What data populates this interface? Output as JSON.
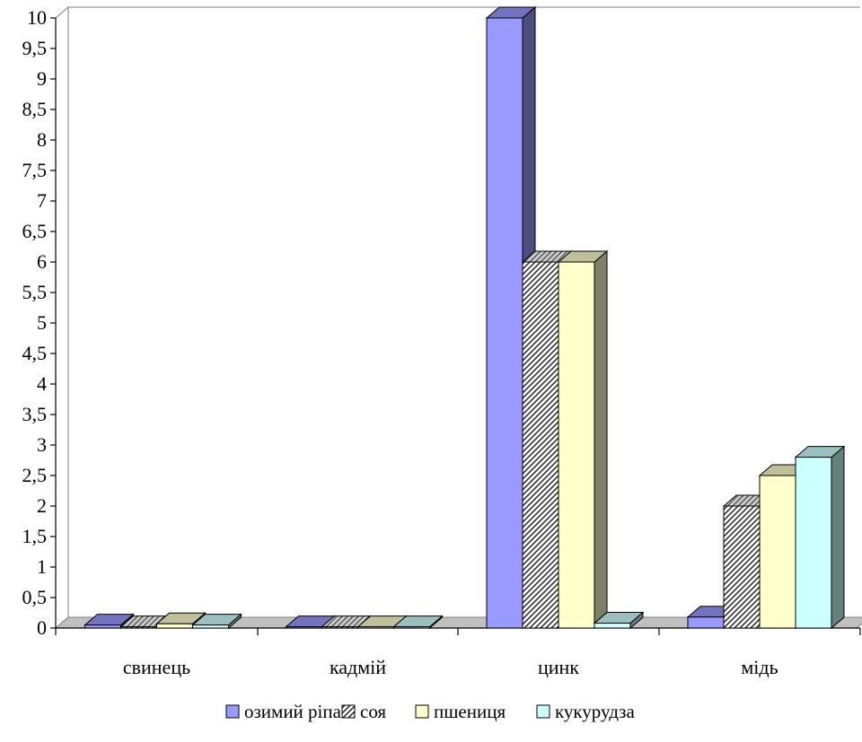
{
  "chart_data": {
    "type": "bar",
    "categories": [
      "свинець",
      "кадмій",
      "цинк",
      "мідь"
    ],
    "series": [
      {
        "name": "озимий ріпак",
        "values": [
          0.05,
          0.02,
          10.0,
          0.18
        ],
        "color": "#9999ff",
        "pattern": "solid"
      },
      {
        "name": "соя",
        "values": [
          0.02,
          0.02,
          6.0,
          2.0
        ],
        "color": "#ffffff",
        "pattern": "diagonal-hatch"
      },
      {
        "name": "пшениця",
        "values": [
          0.07,
          0.02,
          6.0,
          2.5
        ],
        "color": "#ffffcc",
        "pattern": "solid"
      },
      {
        "name": "кукурудза",
        "values": [
          0.05,
          0.02,
          0.08,
          2.8
        ],
        "color": "#ccffff",
        "pattern": "solid"
      }
    ],
    "yticks": [
      "0",
      "0,5",
      "1",
      "1,5",
      "2",
      "2,5",
      "3",
      "3,5",
      "4",
      "4,5",
      "5",
      "5,5",
      "6",
      "6,5",
      "7",
      "7,5",
      "8",
      "8,5",
      "9",
      "9,5",
      "10"
    ],
    "ylim": [
      0,
      10
    ],
    "title": "",
    "xlabel": "",
    "ylabel": "",
    "legend_position": "bottom",
    "three_d": true
  }
}
